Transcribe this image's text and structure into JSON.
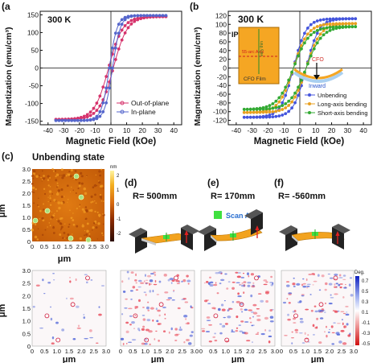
{
  "panels": {
    "a": {
      "letter": "(a",
      "temp": "300 K",
      "xlabel": "Magnetic Field (kOe)",
      "ylabel": "Magnetization (emu/cm³)",
      "legend": [
        "Out-of-plane",
        "In-plane"
      ]
    },
    "b": {
      "letter": "(b",
      "temp": "300 K",
      "xlabel": "Magnetic Field (kOe)",
      "ylabel": "Magnetization (emu/cm³)",
      "legend": [
        "Unbending",
        "Long-axis bending",
        "Short-axis bending"
      ],
      "inset": {
        "ip": "IP",
        "axis_label": "55-arc Axis",
        "film_label": "CFO Film",
        "side_label": "very thin",
        "cfo": "CFO",
        "inward": "Inward"
      }
    },
    "c": {
      "letter": "(c)",
      "title": "Unbending state",
      "unit": "nm",
      "cb_ticks": [
        "2",
        "1",
        "0",
        "-1",
        "-2"
      ],
      "xlabel": "μm",
      "ylabel": "μm"
    },
    "d": {
      "letter": "(d)",
      "radius": "R= 500mm",
      "scan_area": "Scan Area"
    },
    "e": {
      "letter": "(e)",
      "radius": "R= 170mm"
    },
    "f": {
      "letter": "(f)",
      "radius": "R= -560mm"
    },
    "phase": {
      "unit": "Deg.",
      "cb_ticks": [
        "0.7",
        "0.5",
        "0.3",
        "0.1",
        "-0.1",
        "-0.3",
        "-0.5"
      ],
      "xlabel": "μm",
      "ylabel": "μm"
    }
  },
  "afm_ticks": {
    "y": [
      "3.0",
      "2.5",
      "2.0",
      "1.5",
      "1.0",
      "0.5",
      "0"
    ],
    "x": [
      "0",
      "0.5",
      "1.0",
      "1.5",
      "2.0",
      "2.5",
      "3.0"
    ]
  },
  "chart_data": [
    {
      "type": "line",
      "title": "",
      "xlabel": "Magnetic Field (kOe)",
      "ylabel": "Magnetization (emu/cm³)",
      "xlim": [
        -45,
        45
      ],
      "ylim": [
        -160,
        160
      ],
      "xticks": [
        -40,
        -30,
        -20,
        -10,
        0,
        10,
        20,
        30,
        40
      ],
      "yticks": [
        -150,
        -100,
        -50,
        0,
        50,
        100,
        150
      ],
      "series": [
        {
          "name": "Out-of-plane",
          "color": "#d6336c",
          "ms": 145,
          "hc": 1.5,
          "w": 9,
          "x": [
            -35,
            35
          ]
        },
        {
          "name": "In-plane",
          "color": "#5566cc",
          "ms": 148,
          "hc": 1.0,
          "w": 5,
          "x": [
            -35,
            35
          ]
        }
      ],
      "legend": "bottom-right"
    },
    {
      "type": "line",
      "title": "",
      "xlabel": "Magnetic Field (kOe)",
      "ylabel": "Magnetization (emu/cm³)",
      "xlim": [
        -45,
        45
      ],
      "ylim": [
        -130,
        130
      ],
      "xticks": [
        -40,
        -30,
        -20,
        -10,
        0,
        10,
        20,
        30,
        40
      ],
      "yticks": [
        -120,
        -100,
        -80,
        -60,
        -40,
        -20,
        0,
        20,
        40,
        60,
        80,
        100,
        120
      ],
      "series": [
        {
          "name": "Unbending",
          "color": "#4455dd",
          "ms": 113,
          "hc": 4,
          "w": 8,
          "x": [
            -35,
            35
          ]
        },
        {
          "name": "Long-axis bending",
          "color": "#e8a020",
          "ms": 102,
          "hc": 4,
          "w": 9,
          "x": [
            -35,
            35
          ]
        },
        {
          "name": "Short-axis bending",
          "color": "#33aa33",
          "ms": 95,
          "hc": 4,
          "w": 10,
          "x": [
            -35,
            35
          ]
        }
      ],
      "legend": "bottom-right"
    }
  ]
}
